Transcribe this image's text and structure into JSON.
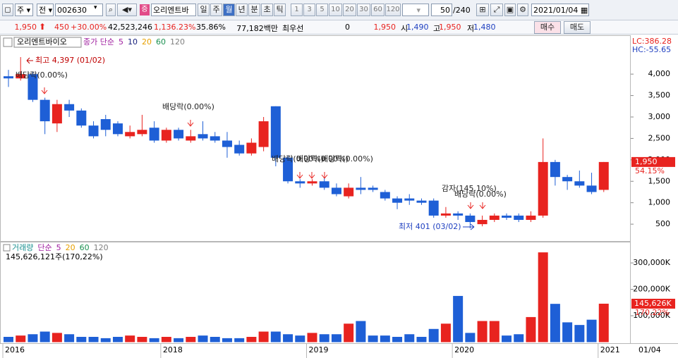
{
  "toolbar": {
    "period": "주",
    "prev": "전",
    "code": "002630",
    "name": "오리엔트바",
    "units": [
      "일",
      "주",
      "월",
      "년",
      "분",
      "초",
      "틱"
    ],
    "steps": [
      "1",
      "3",
      "5",
      "10",
      "20",
      "30",
      "60",
      "120"
    ],
    "count": "50",
    "total": "/240",
    "date": "2021/01/04"
  },
  "info": {
    "price": "1,950",
    "change": "450",
    "change_pct": "+30.00%",
    "volume": "42,523,246",
    "volume_pct": "1,136.23%",
    "turnover": "35.86%",
    "amount": "77,182백만",
    "best": "최우선",
    "best_qty": "0",
    "best_price": "1,950",
    "open_label": "시",
    "open": "1,490",
    "high_label": "고",
    "high": "1,950",
    "low_label": "저",
    "low": "1,480",
    "buy": "매수",
    "sell": "매도"
  },
  "chart_data": {
    "type": "candlestick",
    "tab": "오리엔트바이오",
    "legend": [
      "종가 단순",
      "5",
      "10",
      "20",
      "60",
      "120"
    ],
    "legend_colors": [
      "#a020a0",
      "#a020a0",
      "#1a237e",
      "#e8a000",
      "#1a9050",
      "#808080"
    ],
    "categories": [
      "2016",
      null,
      null,
      null,
      null,
      null,
      null,
      null,
      null,
      null,
      null,
      null,
      null,
      "2018",
      null,
      null,
      null,
      null,
      null,
      null,
      null,
      null,
      null,
      null,
      null,
      "2019",
      null,
      null,
      null,
      null,
      null,
      null,
      null,
      null,
      null,
      null,
      null,
      "2020",
      null,
      null,
      null,
      null,
      null,
      null,
      null,
      null,
      null,
      null,
      null,
      "2021"
    ],
    "open": [
      3950,
      3900,
      4000,
      3400,
      2850,
      3300,
      3150,
      2800,
      2950,
      2850,
      2550,
      2600,
      2750,
      2450,
      2700,
      2450,
      2600,
      2550,
      2450,
      2350,
      2150,
      2300,
      3250,
      2050,
      1500,
      1450,
      1500,
      1350,
      1150,
      1350,
      1350,
      1250,
      1100,
      1100,
      1050,
      1050,
      700,
      750,
      700,
      500,
      600,
      700,
      700,
      600,
      700,
      1950,
      1600,
      1500,
      1400,
      1300
    ],
    "high": [
      4100,
      4397,
      4050,
      3450,
      3400,
      3400,
      3200,
      2900,
      3050,
      2900,
      2800,
      3050,
      2900,
      2750,
      2750,
      2700,
      2900,
      2650,
      2650,
      2450,
      2500,
      3000,
      3250,
      2100,
      1550,
      1550,
      1600,
      1450,
      1450,
      1600,
      1400,
      1300,
      1150,
      1200,
      1100,
      1100,
      900,
      800,
      750,
      700,
      750,
      750,
      750,
      800,
      2500,
      2000,
      1650,
      1750,
      1700,
      1950
    ],
    "low": [
      3700,
      3850,
      3350,
      2600,
      2650,
      3000,
      2750,
      2500,
      2550,
      2550,
      2500,
      2550,
      2400,
      2400,
      2450,
      2400,
      2450,
      2400,
      2050,
      2100,
      2100,
      2200,
      1850,
      1450,
      1350,
      1400,
      1300,
      1150,
      1100,
      1200,
      1250,
      1050,
      850,
      950,
      950,
      650,
      650,
      600,
      401,
      450,
      550,
      600,
      550,
      550,
      650,
      1400,
      1300,
      1350,
      1200,
      1250
    ],
    "close": [
      3900,
      4000,
      3400,
      2900,
      3300,
      3150,
      2800,
      2550,
      2700,
      2600,
      2650,
      2700,
      2450,
      2700,
      2500,
      2550,
      2500,
      2450,
      2300,
      2150,
      2400,
      2900,
      2050,
      1500,
      1450,
      1500,
      1350,
      1200,
      1350,
      1300,
      1300,
      1100,
      1000,
      1050,
      1000,
      700,
      750,
      700,
      550,
      600,
      700,
      650,
      600,
      700,
      1950,
      1600,
      1500,
      1400,
      1250,
      1950
    ],
    "up_color": "#e8231f",
    "down_color": "#1e5fd6",
    "ylim": [
      140,
      4660
    ],
    "yticks": [
      500,
      {
        "value": 1000,
        "label": "1,000"
      },
      {
        "value": 1500,
        "label": "1,500"
      },
      {
        "value": 2000,
        "label": "2,000"
      },
      {
        "value": 2500,
        "label": "2,500"
      },
      {
        "value": 3000,
        "label": "3,000"
      },
      {
        "value": 3500,
        "label": "3,500"
      },
      {
        "value": 4000,
        "label": "4,000"
      }
    ],
    "last": {
      "value": 1950,
      "label": "1,950"
    },
    "last_pct": "54.15%",
    "lc": "LC:386.28",
    "hc": "HC:-55.65",
    "annotations": [
      "최고 4,397 (01/02)",
      "배당락(0.00%)",
      "배당락(0.00%)",
      "배당락(0.00%)",
      "배당락(0.00%)",
      "배당락(0.00%)",
      "감자(145.10%)",
      "배당락(0.00%)",
      "최저 401 (03/02)"
    ],
    "date_label": "01/04",
    "volume": {
      "legend": [
        "거래량",
        "단순",
        "5",
        "20",
        "60",
        "120"
      ],
      "legend_colors": [
        "#1a9090",
        "#a020a0",
        "#a020a0",
        "#e8a000",
        "#1a9050",
        "#808080"
      ],
      "summary": "145,626,121주(170,22%)",
      "values": [
        20000,
        25000,
        30000,
        40000,
        35000,
        30000,
        20000,
        20000,
        15000,
        20000,
        25000,
        20000,
        15000,
        20000,
        15000,
        20000,
        25000,
        20000,
        15000,
        15000,
        20000,
        40000,
        40000,
        30000,
        25000,
        35000,
        30000,
        30000,
        70000,
        80000,
        25000,
        25000,
        20000,
        30000,
        20000,
        50000,
        70000,
        175000,
        35000,
        80000,
        80000,
        25000,
        30000,
        95000,
        340000,
        145000,
        75000,
        65000,
        85000,
        145626
      ],
      "ylim": [
        0,
        375000
      ],
      "yticks": [
        {
          "value": 100000,
          "label": "100,000K"
        },
        {
          "value": 200000,
          "label": "200,000K"
        },
        {
          "value": 300000,
          "label": "300,000K"
        }
      ],
      "last": {
        "value": 145626,
        "label": "145,626K"
      },
      "last_pct": "170.22%"
    }
  }
}
